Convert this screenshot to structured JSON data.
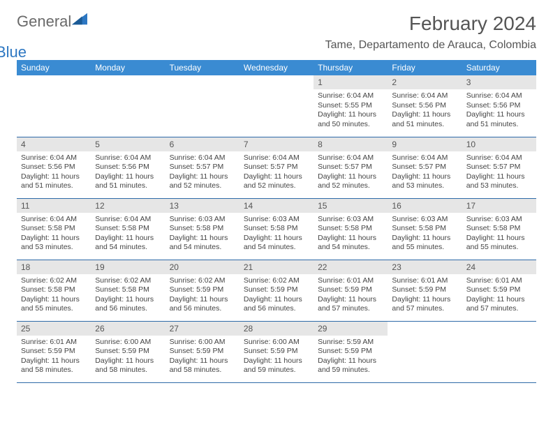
{
  "logo": {
    "text1": "General",
    "text2": "Blue"
  },
  "title": "February 2024",
  "location": "Tame, Departamento de Arauca, Colombia",
  "colors": {
    "header_bg": "#3a8bd2",
    "header_text": "#ffffff",
    "daynum_bg": "#e6e6e6",
    "border": "#2d6aa8",
    "logo_blue": "#2d77c2",
    "logo_gray": "#6a6a6a"
  },
  "dayNames": [
    "Sunday",
    "Monday",
    "Tuesday",
    "Wednesday",
    "Thursday",
    "Friday",
    "Saturday"
  ],
  "weeks": [
    [
      null,
      null,
      null,
      null,
      {
        "n": "1",
        "sr": "Sunrise: 6:04 AM",
        "ss": "Sunset: 5:55 PM",
        "dl": "Daylight: 11 hours and 50 minutes."
      },
      {
        "n": "2",
        "sr": "Sunrise: 6:04 AM",
        "ss": "Sunset: 5:56 PM",
        "dl": "Daylight: 11 hours and 51 minutes."
      },
      {
        "n": "3",
        "sr": "Sunrise: 6:04 AM",
        "ss": "Sunset: 5:56 PM",
        "dl": "Daylight: 11 hours and 51 minutes."
      }
    ],
    [
      {
        "n": "4",
        "sr": "Sunrise: 6:04 AM",
        "ss": "Sunset: 5:56 PM",
        "dl": "Daylight: 11 hours and 51 minutes."
      },
      {
        "n": "5",
        "sr": "Sunrise: 6:04 AM",
        "ss": "Sunset: 5:56 PM",
        "dl": "Daylight: 11 hours and 51 minutes."
      },
      {
        "n": "6",
        "sr": "Sunrise: 6:04 AM",
        "ss": "Sunset: 5:57 PM",
        "dl": "Daylight: 11 hours and 52 minutes."
      },
      {
        "n": "7",
        "sr": "Sunrise: 6:04 AM",
        "ss": "Sunset: 5:57 PM",
        "dl": "Daylight: 11 hours and 52 minutes."
      },
      {
        "n": "8",
        "sr": "Sunrise: 6:04 AM",
        "ss": "Sunset: 5:57 PM",
        "dl": "Daylight: 11 hours and 52 minutes."
      },
      {
        "n": "9",
        "sr": "Sunrise: 6:04 AM",
        "ss": "Sunset: 5:57 PM",
        "dl": "Daylight: 11 hours and 53 minutes."
      },
      {
        "n": "10",
        "sr": "Sunrise: 6:04 AM",
        "ss": "Sunset: 5:57 PM",
        "dl": "Daylight: 11 hours and 53 minutes."
      }
    ],
    [
      {
        "n": "11",
        "sr": "Sunrise: 6:04 AM",
        "ss": "Sunset: 5:58 PM",
        "dl": "Daylight: 11 hours and 53 minutes."
      },
      {
        "n": "12",
        "sr": "Sunrise: 6:04 AM",
        "ss": "Sunset: 5:58 PM",
        "dl": "Daylight: 11 hours and 54 minutes."
      },
      {
        "n": "13",
        "sr": "Sunrise: 6:03 AM",
        "ss": "Sunset: 5:58 PM",
        "dl": "Daylight: 11 hours and 54 minutes."
      },
      {
        "n": "14",
        "sr": "Sunrise: 6:03 AM",
        "ss": "Sunset: 5:58 PM",
        "dl": "Daylight: 11 hours and 54 minutes."
      },
      {
        "n": "15",
        "sr": "Sunrise: 6:03 AM",
        "ss": "Sunset: 5:58 PM",
        "dl": "Daylight: 11 hours and 54 minutes."
      },
      {
        "n": "16",
        "sr": "Sunrise: 6:03 AM",
        "ss": "Sunset: 5:58 PM",
        "dl": "Daylight: 11 hours and 55 minutes."
      },
      {
        "n": "17",
        "sr": "Sunrise: 6:03 AM",
        "ss": "Sunset: 5:58 PM",
        "dl": "Daylight: 11 hours and 55 minutes."
      }
    ],
    [
      {
        "n": "18",
        "sr": "Sunrise: 6:02 AM",
        "ss": "Sunset: 5:58 PM",
        "dl": "Daylight: 11 hours and 55 minutes."
      },
      {
        "n": "19",
        "sr": "Sunrise: 6:02 AM",
        "ss": "Sunset: 5:58 PM",
        "dl": "Daylight: 11 hours and 56 minutes."
      },
      {
        "n": "20",
        "sr": "Sunrise: 6:02 AM",
        "ss": "Sunset: 5:59 PM",
        "dl": "Daylight: 11 hours and 56 minutes."
      },
      {
        "n": "21",
        "sr": "Sunrise: 6:02 AM",
        "ss": "Sunset: 5:59 PM",
        "dl": "Daylight: 11 hours and 56 minutes."
      },
      {
        "n": "22",
        "sr": "Sunrise: 6:01 AM",
        "ss": "Sunset: 5:59 PM",
        "dl": "Daylight: 11 hours and 57 minutes."
      },
      {
        "n": "23",
        "sr": "Sunrise: 6:01 AM",
        "ss": "Sunset: 5:59 PM",
        "dl": "Daylight: 11 hours and 57 minutes."
      },
      {
        "n": "24",
        "sr": "Sunrise: 6:01 AM",
        "ss": "Sunset: 5:59 PM",
        "dl": "Daylight: 11 hours and 57 minutes."
      }
    ],
    [
      {
        "n": "25",
        "sr": "Sunrise: 6:01 AM",
        "ss": "Sunset: 5:59 PM",
        "dl": "Daylight: 11 hours and 58 minutes."
      },
      {
        "n": "26",
        "sr": "Sunrise: 6:00 AM",
        "ss": "Sunset: 5:59 PM",
        "dl": "Daylight: 11 hours and 58 minutes."
      },
      {
        "n": "27",
        "sr": "Sunrise: 6:00 AM",
        "ss": "Sunset: 5:59 PM",
        "dl": "Daylight: 11 hours and 58 minutes."
      },
      {
        "n": "28",
        "sr": "Sunrise: 6:00 AM",
        "ss": "Sunset: 5:59 PM",
        "dl": "Daylight: 11 hours and 59 minutes."
      },
      {
        "n": "29",
        "sr": "Sunrise: 5:59 AM",
        "ss": "Sunset: 5:59 PM",
        "dl": "Daylight: 11 hours and 59 minutes."
      },
      null,
      null
    ]
  ]
}
